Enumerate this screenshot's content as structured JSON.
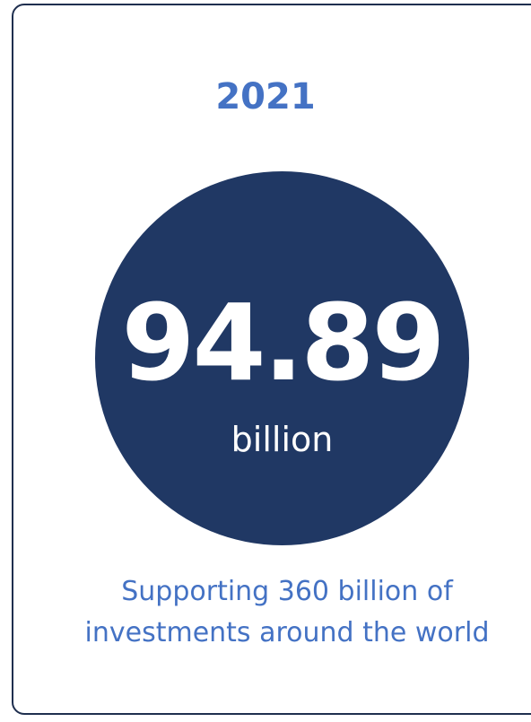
{
  "card": {
    "year": "2021",
    "value": "94.89",
    "unit": "billion",
    "caption_line1": "Supporting 360 billion of",
    "caption_line2": "investments around the world"
  },
  "colors": {
    "border": "#1f2f4f",
    "accent_text": "#4472c4",
    "circle_fill": "#203864",
    "circle_text": "#ffffff"
  }
}
